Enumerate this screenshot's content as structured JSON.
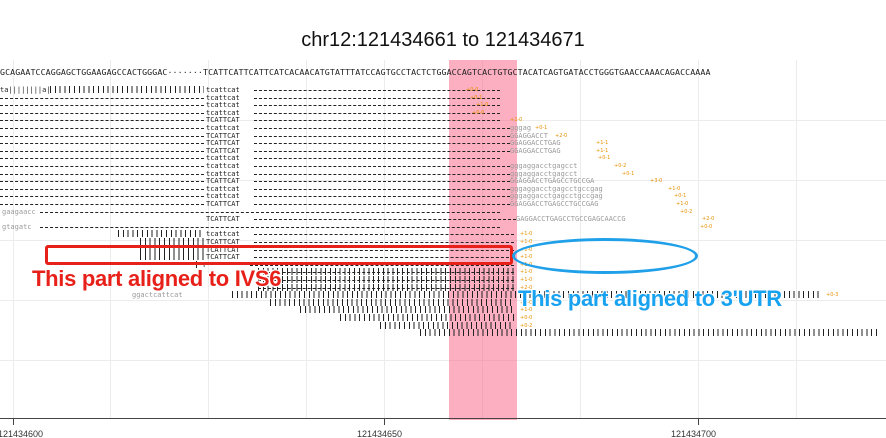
{
  "title": "chr12:121434661 to 121434671",
  "reference_sequence": "GCAGAATCCAGGAGCTGGAAGAGCCACTGGGAC·······TCATTCATTCATTCATCACAACATGTATTTATCCAGTGCCTACTCTGGACCAGTCACTGTGCTACATCAGTGATACCTGGGTGAACCAAACAGACCAAAA",
  "axis": {
    "ticks": [
      {
        "label": "121434600"
      },
      {
        "label": "121434650"
      },
      {
        "label": "121434700"
      }
    ]
  },
  "annotations": {
    "ivs6_label": "This part aligned to IVS6",
    "utr_label": "This part aligned to 3'UTR"
  },
  "colors": {
    "highlight": "#f76e8c",
    "annotation_red": "#e8201a",
    "annotation_blue": "#19a2f0",
    "tag_orange": "#e69000"
  },
  "reads": [
    {
      "left": "ta||||||||a|",
      "mid": "tcattcat",
      "right": "",
      "tag": "+0-0"
    },
    {
      "left": "",
      "mid": "tcattcat",
      "right": "",
      "tag": "+0-1"
    },
    {
      "left": "",
      "mid": "tcattcat",
      "right": "",
      "tag": "+1-0"
    },
    {
      "left": "",
      "mid": "tcattcat",
      "right": "",
      "tag": "+0-0"
    },
    {
      "left": "",
      "mid": "TCATTCAT",
      "right": "",
      "tag": "+2-0"
    },
    {
      "left": "",
      "mid": "tcattcat",
      "right": "gggag",
      "tag": "+0-1"
    },
    {
      "left": "",
      "mid": "TCATTCAT",
      "right": "GGAGGACCT",
      "tag": "+2-0"
    },
    {
      "left": "",
      "mid": "TCATTCAT",
      "right": "GGAGGACCTGAG",
      "tag": "+1-1"
    },
    {
      "left": "",
      "mid": "TCATTCAT",
      "right": "GGAGGACCTGAG",
      "tag": "+1-1"
    },
    {
      "left": "",
      "mid": "tcattcat",
      "right": "",
      "tag": "+0-1"
    },
    {
      "left": "",
      "mid": "tcattcat",
      "right": "gggaggacctgagcct",
      "tag": "+0-2"
    },
    {
      "left": "",
      "mid": "tcattcat",
      "right": "gggaggacctgagcct",
      "tag": "+0-1"
    },
    {
      "left": "",
      "mid": "TCATTCAT",
      "right": "GGAGGACCTGAGCCTGCCGA",
      "tag": "+3-0"
    },
    {
      "left": "",
      "mid": "tcattcat",
      "right": "gggaggacctgagcctgccgag",
      "tag": "+1-0"
    },
    {
      "left": "",
      "mid": "tcattcat",
      "right": "gggaggacctgagcctgccgag",
      "tag": "+0-1"
    },
    {
      "left": "",
      "mid": "TCATTCAT",
      "right": "GGAGGACCTGAGCCTGCCGAG",
      "tag": "+1-0"
    },
    {
      "left": "gaagaacc",
      "mid": "",
      "right": "",
      "tag": "+0-2"
    },
    {
      "left": "",
      "mid": "TCATTCAT",
      "right": "GAGGACCTGAGCCTGCCGAGCAACCG",
      "tag": "+2-0"
    },
    {
      "left": "gtagatc",
      "mid": "",
      "right": "",
      "tag": "+0-0"
    },
    {
      "left": "",
      "mid": "tcattcat",
      "right": "",
      "tag": "+1-0"
    },
    {
      "left": "",
      "mid": "TCATTCAT",
      "right": "",
      "tag": "+1-0"
    },
    {
      "left": "",
      "mid": "TCATTCAT",
      "right": "",
      "tag": "+1-0"
    },
    {
      "left": "",
      "mid": "TCATTCAT",
      "right": "",
      "tag": "+1-0"
    },
    {
      "left": "",
      "mid": "T",
      "right": "",
      "tag": "+1-0"
    },
    {
      "left": "",
      "mid": "",
      "right": "",
      "tag": "+1-0"
    },
    {
      "left": "",
      "mid": "",
      "right": "",
      "tag": "+1-0"
    },
    {
      "left": "",
      "mid": "",
      "right": "",
      "tag": "+2-0"
    },
    {
      "left": "ggactcattcat",
      "mid": "",
      "right": "",
      "tag": "+0-3"
    },
    {
      "left": "",
      "mid": "",
      "right": "",
      "tag": "+1-0"
    },
    {
      "left": "",
      "mid": "",
      "right": "",
      "tag": "+1-0"
    },
    {
      "left": "",
      "mid": "",
      "right": "",
      "tag": "+0-0"
    },
    {
      "left": "",
      "mid": "",
      "right": "",
      "tag": "+0-2"
    },
    {
      "left": "",
      "mid": "",
      "right": "",
      "tag": "+0-0"
    }
  ]
}
